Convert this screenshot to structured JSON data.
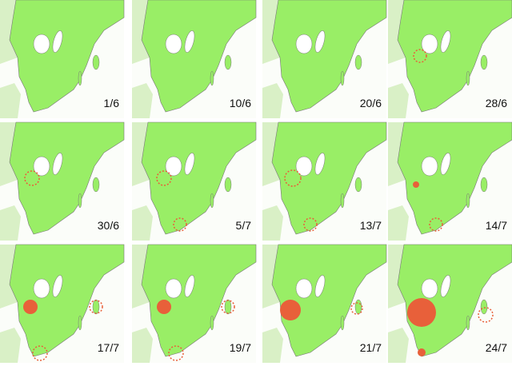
{
  "panels": [
    {
      "label": "1/6"
    },
    {
      "label": "10/6"
    },
    {
      "label": "20/6"
    },
    {
      "label": "28/6"
    },
    {
      "label": "30/6"
    },
    {
      "label": "5/7"
    },
    {
      "label": "13/7"
    },
    {
      "label": "14/7"
    },
    {
      "label": "17/7"
    },
    {
      "label": "19/7"
    },
    {
      "label": "21/7"
    },
    {
      "label": "24/7"
    }
  ]
}
